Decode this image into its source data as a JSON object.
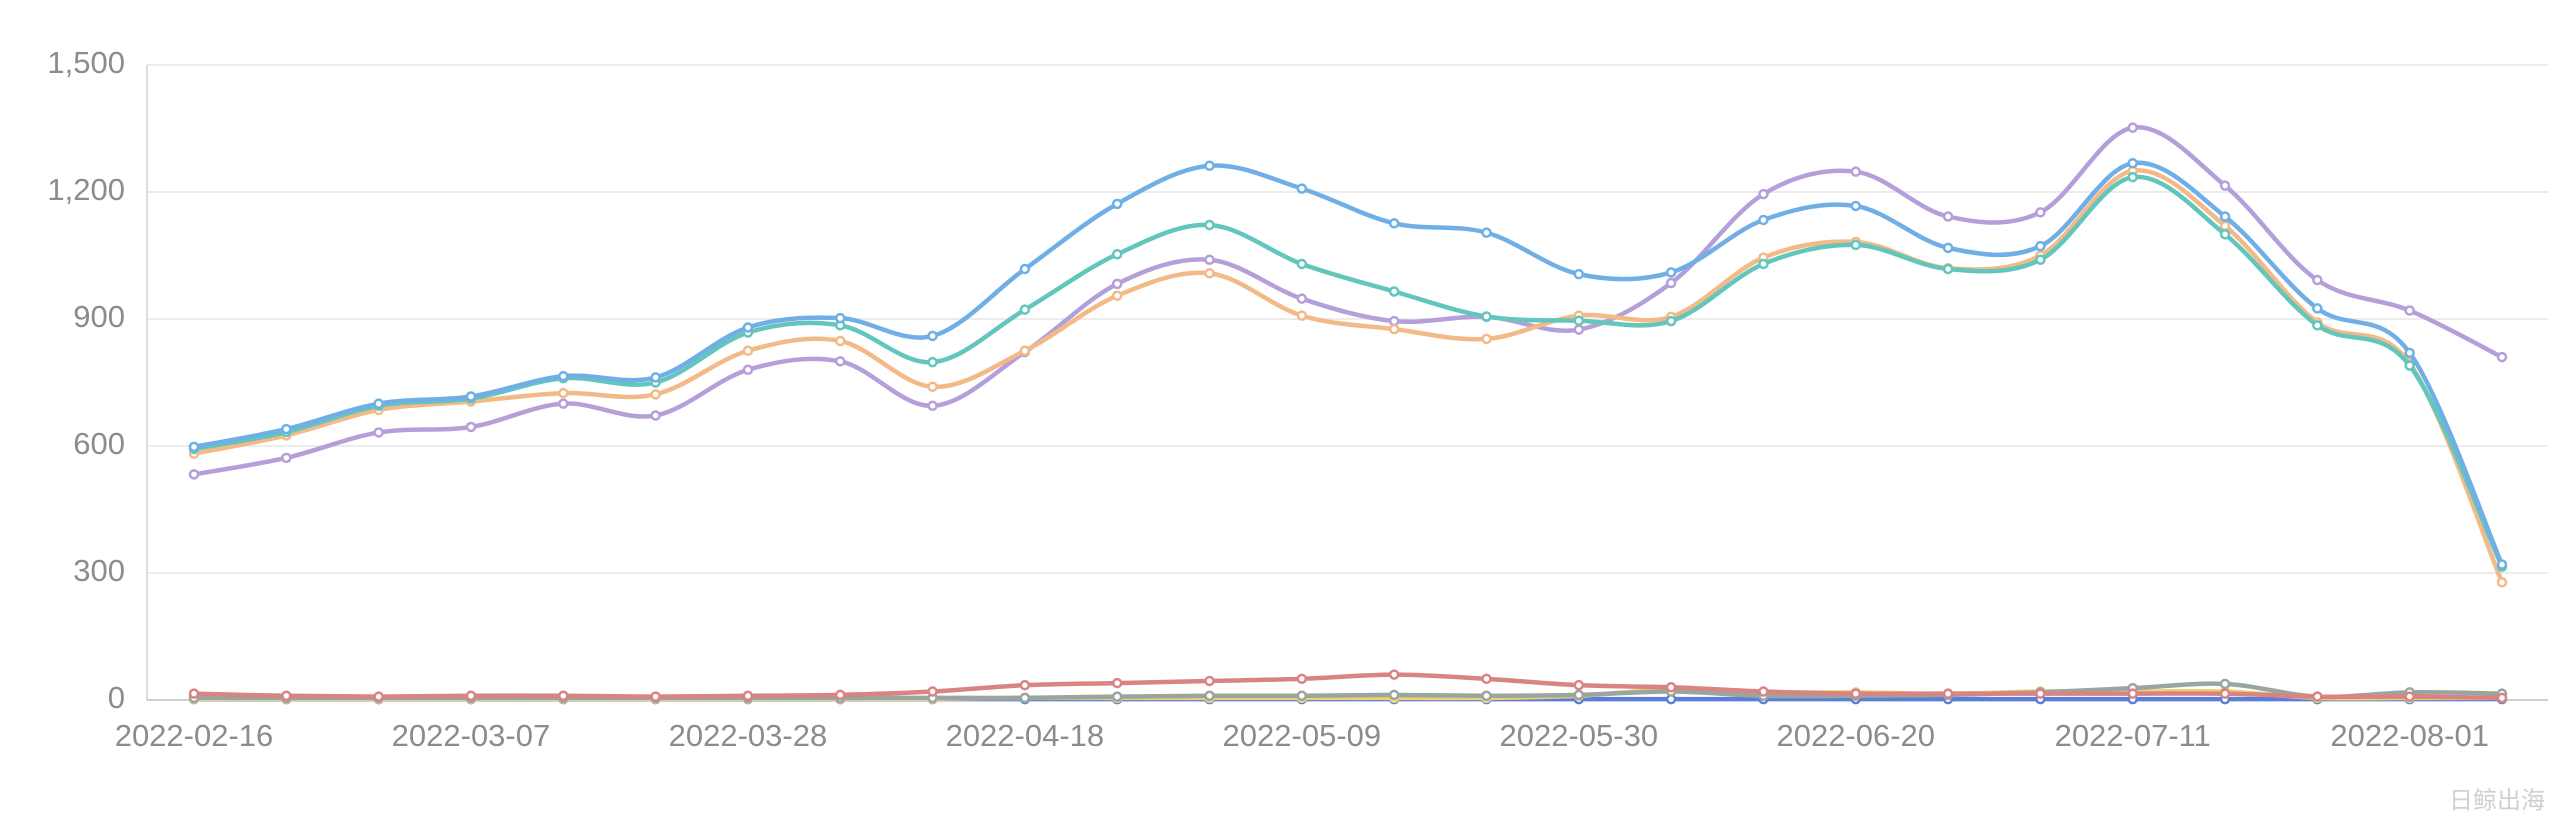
{
  "chart_data": {
    "type": "line",
    "categories": [
      "2022-02-16",
      null,
      null,
      "2022-03-07",
      null,
      null,
      "2022-03-28",
      null,
      null,
      "2022-04-18",
      null,
      null,
      "2022-05-09",
      null,
      null,
      "2022-05-30",
      null,
      null,
      "2022-06-20",
      null,
      null,
      "2022-07-11",
      null,
      null,
      "2022-08-01",
      null
    ],
    "ylim": [
      0,
      1500
    ],
    "yticks": [
      0,
      {
        "value": 300,
        "label": "300"
      },
      {
        "value": 600,
        "label": "600"
      },
      {
        "value": 900,
        "label": "900"
      },
      {
        "value": 1200,
        "label": "1,200"
      },
      {
        "value": 1500,
        "label": "1,500"
      }
    ],
    "grid": true,
    "smooth": true,
    "series": [
      {
        "color": "#6fafe6",
        "values": [
          598,
          640,
          700,
          717,
          765,
          762,
          880,
          902,
          860,
          1018,
          1172,
          1262,
          1208,
          1126,
          1104,
          1006,
          1010,
          1134,
          1167,
          1068,
          1072,
          1268,
          1142,
          925,
          820,
          320
        ]
      },
      {
        "color": "#62c6bd",
        "values": [
          593,
          633,
          695,
          712,
          760,
          750,
          868,
          885,
          798,
          922,
          1053,
          1122,
          1030,
          965,
          906,
          896,
          895,
          1030,
          1075,
          1018,
          1040,
          1235,
          1100,
          885,
          790,
          315
        ]
      },
      {
        "color": "#f3b987",
        "values": [
          582,
          625,
          685,
          705,
          725,
          722,
          825,
          848,
          740,
          825,
          955,
          1008,
          908,
          876,
          853,
          908,
          905,
          1045,
          1082,
          1020,
          1050,
          1250,
          1120,
          892,
          795,
          278
        ]
      },
      {
        "color": "#b59fdb",
        "values": [
          533,
          572,
          632,
          645,
          700,
          672,
          780,
          800,
          695,
          822,
          983,
          1040,
          948,
          895,
          905,
          875,
          985,
          1195,
          1248,
          1142,
          1152,
          1352,
          1215,
          992,
          920,
          810
        ]
      },
      {
        "color": "#d98383",
        "values": [
          15,
          10,
          8,
          10,
          10,
          8,
          10,
          12,
          20,
          35,
          40,
          45,
          50,
          60,
          50,
          35,
          30,
          20,
          15,
          15,
          15,
          15,
          15,
          8,
          8,
          5
        ]
      },
      {
        "color": "#9aa5a0",
        "values": [
          5,
          5,
          5,
          5,
          5,
          5,
          5,
          5,
          5,
          5,
          8,
          10,
          10,
          12,
          10,
          12,
          20,
          10,
          10,
          12,
          18,
          28,
          38,
          8,
          18,
          15
        ]
      },
      {
        "color": "#f0d070",
        "values": [
          3,
          3,
          3,
          3,
          3,
          3,
          3,
          3,
          3,
          5,
          5,
          5,
          5,
          5,
          5,
          10,
          25,
          18,
          18,
          15,
          20,
          20,
          20,
          5,
          5,
          5
        ]
      },
      {
        "color": "#5b7fd6",
        "values": [
          2,
          2,
          2,
          2,
          2,
          2,
          2,
          2,
          2,
          2,
          2,
          2,
          2,
          2,
          2,
          2,
          2,
          2,
          2,
          2,
          2,
          2,
          2,
          2,
          2,
          2
        ]
      }
    ],
    "watermark": "日鲸出海"
  }
}
